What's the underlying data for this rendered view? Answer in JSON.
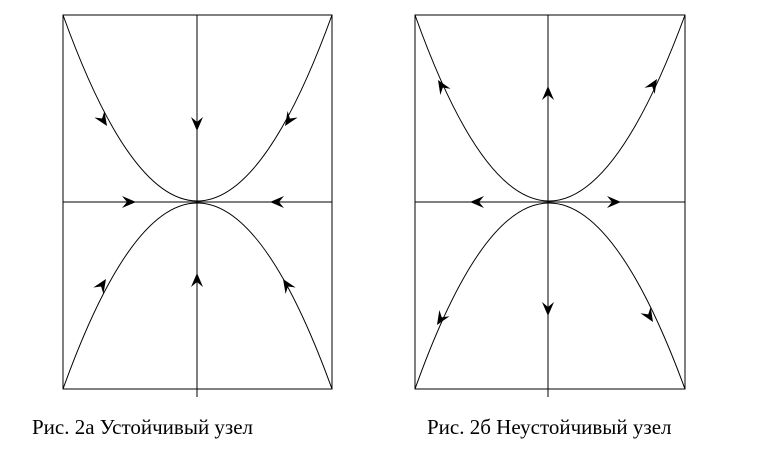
{
  "figures": [
    {
      "id": "a",
      "caption": "Рис. 2а Устойчивый узел",
      "kind": "stable"
    },
    {
      "id": "b",
      "caption": "Рис. 2б Неустойчивый узел",
      "kind": "unstable"
    }
  ],
  "colors": {
    "stroke": "#000000",
    "background": "#ffffff"
  }
}
